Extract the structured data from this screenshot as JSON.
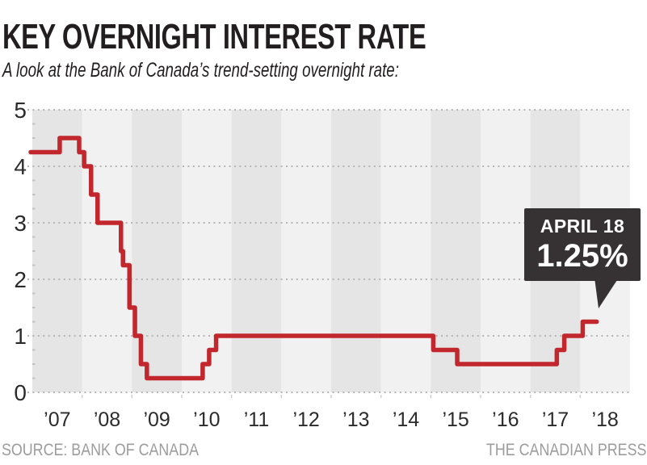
{
  "page": {
    "title": "KEY OVERNIGHT INTEREST RATE",
    "subtitle": "A look at the Bank of Canada’s trend-setting overnight rate:",
    "source": "SOURCE: BANK OF CANADA",
    "credit": "THE CANADIAN PRESS"
  },
  "callout": {
    "date": "APRIL 18",
    "rate": "1.25%"
  },
  "colors": {
    "line_red": "#c1272d",
    "callout_bg": "#363233",
    "callout_text": "#ffffff",
    "band_dark": "#e5e5e5",
    "band_light": "#f1f1f1",
    "grid_dot": "#b5b5b5",
    "minor_tick": "#c2c2c2",
    "axis_text": "#2b2b2b",
    "title_text": "#221e1f",
    "footer_text": "#9c9c9c"
  },
  "chart_data": {
    "type": "line",
    "subtype": "step",
    "title": "KEY OVERNIGHT INTEREST RATE",
    "series_name": "Bank of Canada key overnight interest rate (%)",
    "xlabel": "",
    "ylabel": "",
    "ylim": [
      0,
      5
    ],
    "xlim": [
      2007,
      2019
    ],
    "grid": "dotted horizontal gridlines at each integer, minor y ticks every 0.25",
    "legend": "none",
    "x_tick_labels": [
      "’07",
      "’08",
      "’09",
      "’10",
      "’11",
      "’12",
      "’13",
      "’14",
      "’15",
      "’16",
      "’17",
      "’18"
    ],
    "y_tick_labels": [
      "0",
      "1",
      "2",
      "3",
      "4",
      "5"
    ],
    "steps": [
      {
        "date": "2007-01",
        "t": 2007.0,
        "rate": 4.25
      },
      {
        "date": "2007-07",
        "t": 2007.55,
        "rate": 4.5
      },
      {
        "date": "2007-12",
        "t": 2007.94,
        "rate": 4.25
      },
      {
        "date": "2008-01",
        "t": 2008.04,
        "rate": 4.0
      },
      {
        "date": "2008-03",
        "t": 2008.18,
        "rate": 3.5
      },
      {
        "date": "2008-04",
        "t": 2008.31,
        "rate": 3.0
      },
      {
        "date": "2008-10",
        "t": 2008.78,
        "rate": 2.5
      },
      {
        "date": "2008-10",
        "t": 2008.82,
        "rate": 2.25
      },
      {
        "date": "2008-12",
        "t": 2008.95,
        "rate": 1.5
      },
      {
        "date": "2009-01",
        "t": 2009.06,
        "rate": 1.0
      },
      {
        "date": "2009-03",
        "t": 2009.18,
        "rate": 0.5
      },
      {
        "date": "2009-04",
        "t": 2009.3,
        "rate": 0.25
      },
      {
        "date": "2010-06",
        "t": 2010.42,
        "rate": 0.5
      },
      {
        "date": "2010-07",
        "t": 2010.55,
        "rate": 0.75
      },
      {
        "date": "2010-09",
        "t": 2010.69,
        "rate": 1.0
      },
      {
        "date": "2015-01",
        "t": 2015.05,
        "rate": 0.75
      },
      {
        "date": "2015-07",
        "t": 2015.53,
        "rate": 0.5
      },
      {
        "date": "2017-07",
        "t": 2017.53,
        "rate": 0.75
      },
      {
        "date": "2017-09",
        "t": 2017.68,
        "rate": 1.0
      },
      {
        "date": "2018-01",
        "t": 2018.05,
        "rate": 1.25
      }
    ],
    "end_t": 2018.33,
    "final_annotation": {
      "label": "APRIL 18",
      "value": "1.25%"
    }
  }
}
